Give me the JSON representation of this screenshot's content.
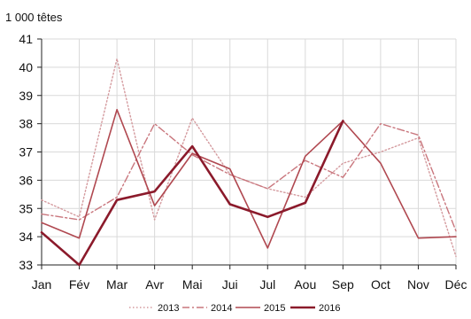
{
  "chart_data": {
    "type": "line",
    "unit_label": "1 000 têtes",
    "categories": [
      "Jan",
      "Fév",
      "Mar",
      "Avr",
      "Mai",
      "Jui",
      "Jul",
      "Aou",
      "Sep",
      "Oct",
      "Nov",
      "Déc"
    ],
    "ylim": [
      33,
      41
    ],
    "yticks": [
      33,
      34,
      35,
      36,
      37,
      38,
      39,
      40,
      41
    ],
    "grid": true,
    "legend_position": "bottom",
    "series": [
      {
        "name": "2013",
        "color": "#d49a9e",
        "dash": "dotted",
        "width": 1.4,
        "values": [
          35.3,
          34.7,
          40.3,
          34.6,
          38.2,
          36.2,
          35.7,
          35.4,
          36.6,
          37.0,
          37.5,
          33.3
        ]
      },
      {
        "name": "2014",
        "color": "#c9767d",
        "dash": "dashdot",
        "width": 1.4,
        "values": [
          34.8,
          34.6,
          35.4,
          38.0,
          36.9,
          36.2,
          35.7,
          36.7,
          36.1,
          38.0,
          37.6,
          34.2
        ]
      },
      {
        "name": "2015",
        "color": "#b04850",
        "dash": "solid",
        "width": 1.6,
        "values": [
          34.5,
          33.95,
          38.5,
          35.1,
          36.95,
          36.4,
          33.6,
          36.85,
          38.1,
          36.6,
          33.95,
          34.0
        ]
      },
      {
        "name": "2016",
        "color": "#8b1a2b",
        "dash": "solid",
        "width": 2.6,
        "values": [
          34.15,
          33.0,
          35.3,
          35.6,
          37.2,
          35.15,
          34.7,
          35.2,
          38.1,
          null,
          null,
          null
        ]
      }
    ]
  }
}
